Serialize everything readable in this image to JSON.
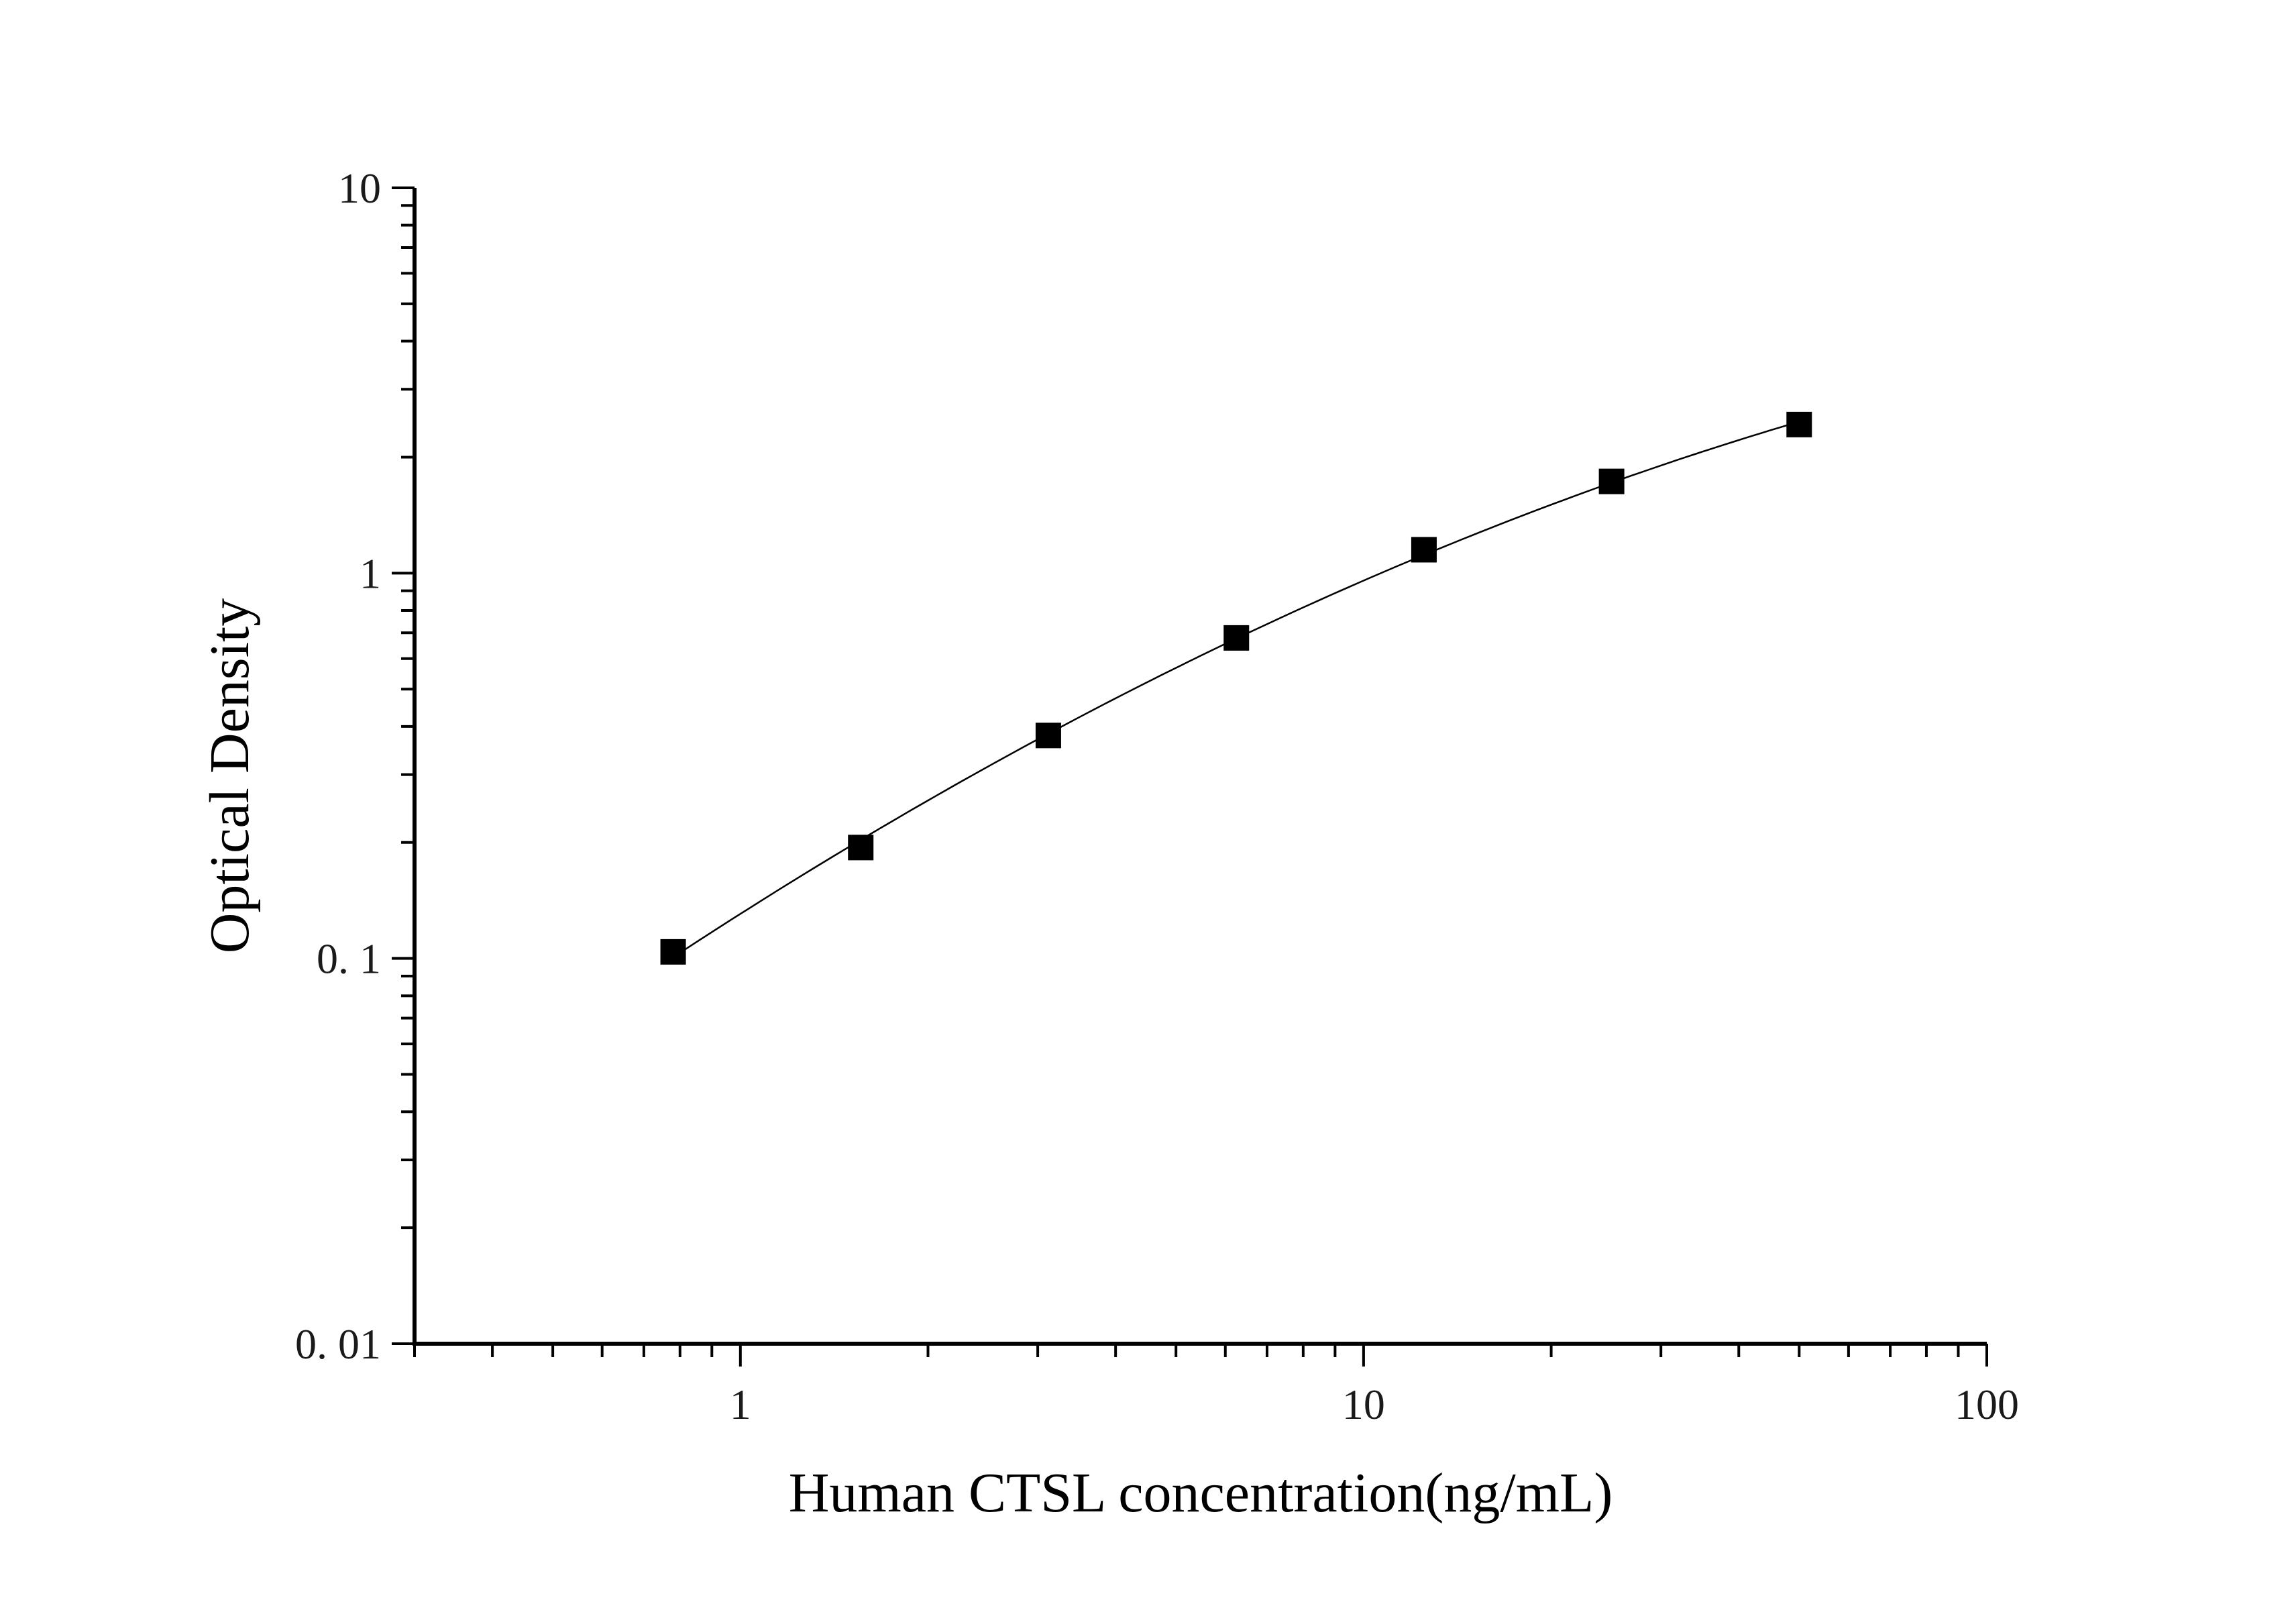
{
  "chart_data": {
    "type": "scatter",
    "title": "",
    "xlabel": "Human CTSL concentration(ng/mL)",
    "ylabel": "Optical Density",
    "xscale": "log",
    "yscale": "log",
    "xlim": [
      0.3,
      100
    ],
    "ylim": [
      0.01,
      10
    ],
    "x_ticks": [
      {
        "value": 1,
        "label": "1"
      },
      {
        "value": 10,
        "label": "10"
      },
      {
        "value": 100,
        "label": "100"
      }
    ],
    "y_ticks": [
      {
        "value": 0.01,
        "label": "0. 01"
      },
      {
        "value": 0.1,
        "label": "0. 1"
      },
      {
        "value": 1,
        "label": "1"
      },
      {
        "value": 10,
        "label": "10"
      }
    ],
    "grid": false,
    "legend": "none",
    "series": [
      {
        "points": [
          {
            "x": 0.78,
            "y": 0.104
          },
          {
            "x": 1.56,
            "y": 0.194
          },
          {
            "x": 3.12,
            "y": 0.379
          },
          {
            "x": 6.25,
            "y": 0.679
          },
          {
            "x": 12.5,
            "y": 1.15
          },
          {
            "x": 25,
            "y": 1.73
          },
          {
            "x": 50,
            "y": 2.43
          }
        ],
        "marker": "square",
        "color": "#000000",
        "fit_curve": true
      }
    ]
  }
}
